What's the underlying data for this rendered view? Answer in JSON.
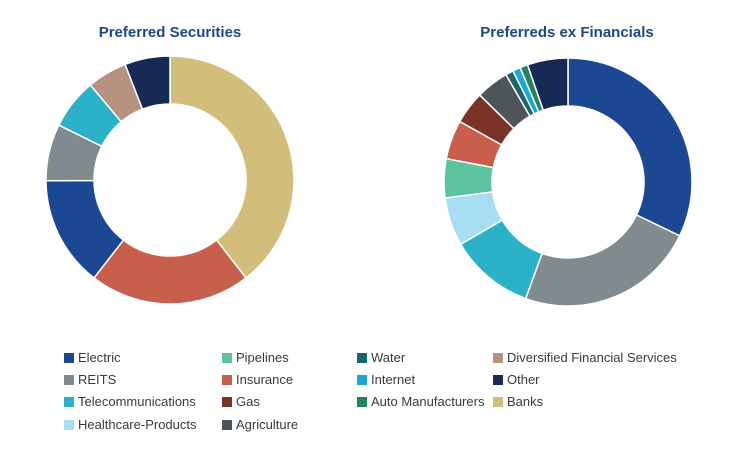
{
  "colors": {
    "Electric": "#1b4793",
    "REITS": "#818a8f",
    "Telecommunications": "#2bb1c8",
    "Healthcare-Products": "#a8def2",
    "Pipelines": "#5cc39e",
    "Insurance": "#c85f4d",
    "Gas": "#7b3328",
    "Agriculture": "#4e5558",
    "Water": "#1c6471",
    "Internet": "#1ba7d5",
    "Auto Manufacturers": "#248462",
    "Other": "#172a55",
    "Diversified Financial Services": "#b69380",
    "Banks": "#d3bd7b"
  },
  "legend": [
    [
      "Electric",
      "REITS",
      "Telecommunications",
      "Healthcare-Products"
    ],
    [
      "Pipelines",
      "Insurance",
      "Gas",
      "Agriculture"
    ],
    [
      "Water",
      "Internet",
      "Auto Manufacturers"
    ],
    [
      "Diversified Financial Services",
      "Other",
      "Banks"
    ]
  ],
  "chart_data": [
    {
      "type": "pie",
      "title": "Preferred Securities",
      "donut": true,
      "slices": [
        {
          "label": "Banks",
          "value": 39.5
        },
        {
          "label": "Insurance",
          "value": 21.0
        },
        {
          "label": "Electric",
          "value": 14.4
        },
        {
          "label": "REITS",
          "value": 7.4
        },
        {
          "label": "Telecommunications",
          "value": 6.6
        },
        {
          "label": "Diversified Financial Services",
          "value": 5.2
        },
        {
          "label": "Other",
          "value": 5.9
        }
      ]
    },
    {
      "type": "pie",
      "title": "Preferreds ex Financials",
      "donut": true,
      "slices": [
        {
          "label": "Electric",
          "value": 31.6
        },
        {
          "label": "REITS",
          "value": 23.0
        },
        {
          "label": "Telecommunications",
          "value": 10.9
        },
        {
          "label": "Healthcare-Products",
          "value": 6.2
        },
        {
          "label": "Pipelines",
          "value": 5.0
        },
        {
          "label": "Insurance",
          "value": 5.0
        },
        {
          "label": "Gas",
          "value": 4.2
        },
        {
          "label": "Agriculture",
          "value": 4.2
        },
        {
          "label": "Water",
          "value": 1.0
        },
        {
          "label": "Internet",
          "value": 1.0
        },
        {
          "label": "Auto Manufacturers",
          "value": 1.0
        },
        {
          "label": "Other",
          "value": 5.2
        }
      ]
    }
  ]
}
